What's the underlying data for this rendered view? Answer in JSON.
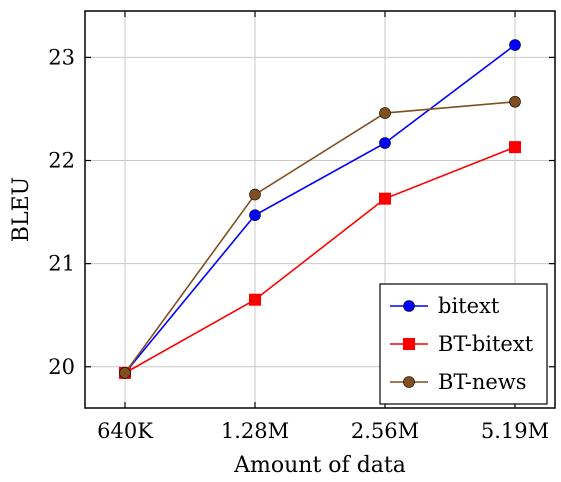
{
  "chart_data": {
    "type": "line",
    "title": "",
    "xlabel": "Amount of data",
    "ylabel": "BLEU",
    "categories": [
      "640K",
      "1.28M",
      "2.56M",
      "5.19M"
    ],
    "ylim": [
      19.6,
      23.45
    ],
    "yticks": [
      20,
      21,
      22,
      23
    ],
    "grid": true,
    "legend_position": "bottom-right",
    "series": [
      {
        "name": "bitext",
        "color": "#0000ff",
        "marker": "circle",
        "values": [
          19.94,
          21.47,
          22.17,
          23.12
        ]
      },
      {
        "name": "BT-bitext",
        "color": "#ff0000",
        "marker": "square",
        "values": [
          19.94,
          20.65,
          21.63,
          22.13
        ]
      },
      {
        "name": "BT-news",
        "color": "#7f4f1f",
        "marker": "circle",
        "values": [
          19.94,
          21.67,
          22.46,
          22.57
        ]
      }
    ]
  }
}
